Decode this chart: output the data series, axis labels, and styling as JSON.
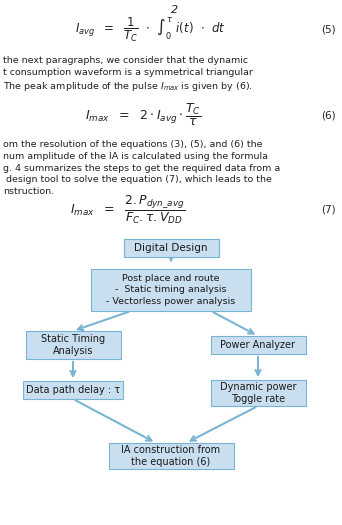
{
  "bg_color": "#ffffff",
  "box_fill": "#c9dff0",
  "box_edge": "#7ab4d4",
  "arrow_color": "#7ab4d4",
  "box1_label": "Digital Design",
  "box2_label": "Post place and route\n-  Static timing analysis\n- Vectorless power analysis",
  "box3a_label": "Static Timing\nAnalysis",
  "box3b_label": "Power Analyzer",
  "box4a_label": "Data path delay : τ",
  "box4b_label": "Dynamic power\nToggle rate",
  "box5_label": "IA construction from\nthe equation (6)",
  "eq5_num": "(5)",
  "eq6_num": "(6)",
  "eq7_num": "(7)",
  "text1": "the next paragraphs, we consider that the dynamic\nt consumption waveform is a symmetrical triangular\nThe peak amplitude of the pulse $I_{max}$ is given by (6).",
  "text2": "om the resolution of the equations (3), (5), and (6) the\nnum amplitude of the IA is calculated using the formula\ng. 4 summarizes the steps to get the required data from a\n design tool to solve the equation (7), which leads to the\nnstruction."
}
